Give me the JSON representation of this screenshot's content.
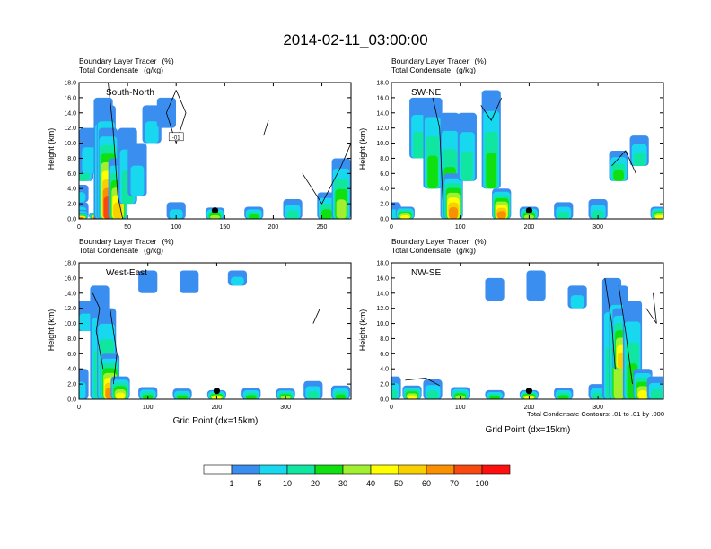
{
  "title": "2014-02-11_03:00:00",
  "panel_header": {
    "line1_label": "Boundary Layer Tracer",
    "line1_unit": "(%)",
    "line2_label": "Total Condensate",
    "line2_unit": "(g/kg)"
  },
  "ylabel": "Height (km)",
  "xlabel": "Grid Point (dx=15km)",
  "contour_note": "Total Condensate Contours: .01 to .01 by .000",
  "colorbar": {
    "labels": [
      "1",
      "5",
      "10",
      "20",
      "30",
      "40",
      "50",
      "60",
      "70",
      "100"
    ],
    "colors": [
      "#ffffff",
      "#3a8ef0",
      "#18d8f0",
      "#10e6a0",
      "#10e010",
      "#a0f030",
      "#ffff00",
      "#f8d000",
      "#f89000",
      "#f84a10",
      "#ff1010"
    ]
  },
  "chart_data": [
    {
      "type": "heatmap",
      "name": "South-North",
      "label": "South-North",
      "xlim": [
        0,
        280
      ],
      "xticks": [
        "0",
        "50",
        "100",
        "150",
        "200",
        "250"
      ],
      "xtick_values": [
        0,
        50,
        100,
        150,
        200,
        250
      ],
      "ylim": [
        0,
        18
      ],
      "yticks": [
        "0.0",
        "2.0",
        "4.0",
        "6.0",
        "8.0",
        "10.0",
        "12.0",
        "14.0",
        "16.0",
        "18.0"
      ],
      "marker": {
        "x": 140,
        "y": 1.1
      },
      "contour_label": "-01",
      "has_xlabel": false
    },
    {
      "type": "heatmap",
      "name": "SW-NE",
      "label": "SW-NE",
      "xlim": [
        0,
        395
      ],
      "xticks": [
        "0",
        "100",
        "200",
        "300"
      ],
      "xtick_values": [
        0,
        100,
        200,
        300
      ],
      "ylim": [
        0,
        18
      ],
      "yticks": [
        "0.0",
        "2.0",
        "4.0",
        "6.0",
        "8.0",
        "10.0",
        "12.0",
        "14.0",
        "16.0",
        "18.0"
      ],
      "marker": {
        "x": 200,
        "y": 1.1
      },
      "contour_label": "",
      "has_xlabel": false
    },
    {
      "type": "heatmap",
      "name": "West-East",
      "label": "West-East",
      "xlim": [
        0,
        395
      ],
      "xticks": [
        "0",
        "100",
        "200",
        "300"
      ],
      "xtick_values": [
        0,
        100,
        200,
        300
      ],
      "ylim": [
        0,
        18
      ],
      "yticks": [
        "0.0",
        "2.0",
        "4.0",
        "6.0",
        "8.0",
        "10.0",
        "12.0",
        "14.0",
        "16.0",
        "18.0"
      ],
      "marker": {
        "x": 200,
        "y": 1.1
      },
      "contour_label": "",
      "has_xlabel": true
    },
    {
      "type": "heatmap",
      "name": "NW-SE",
      "label": "NW-SE",
      "xlim": [
        0,
        395
      ],
      "xticks": [
        "0",
        "100",
        "200",
        "300"
      ],
      "xtick_values": [
        0,
        100,
        200,
        300
      ],
      "ylim": [
        0,
        18
      ],
      "yticks": [
        "0.0",
        "2.0",
        "4.0",
        "6.0",
        "8.0",
        "10.0",
        "12.0",
        "14.0",
        "16.0",
        "18.0"
      ],
      "marker": {
        "x": 200,
        "y": 1.1
      },
      "contour_label": "",
      "has_xlabel": true
    }
  ]
}
